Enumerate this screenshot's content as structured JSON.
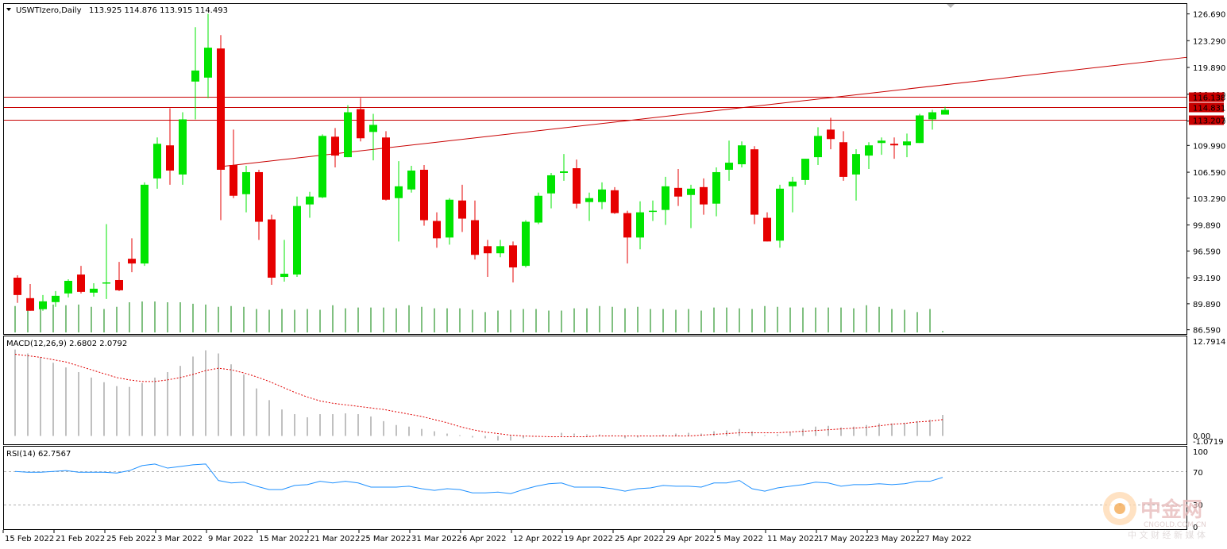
{
  "main": {
    "title": "USWTIzero,Daily",
    "ohlc": "113.925 114.876 113.915 114.493",
    "y_ticks": [
      "126.690",
      "123.290",
      "119.890",
      "116.490",
      "113.090",
      "109.990",
      "106.590",
      "103.290",
      "99.890",
      "96.590",
      "93.190",
      "89.890",
      "86.590"
    ],
    "h_lines": [
      {
        "value": 116.138,
        "label": "116.138"
      },
      {
        "value": 114.831,
        "label": "114.831"
      },
      {
        "value": 113.207,
        "label": "113.207"
      }
    ],
    "trendline": {
      "from": [
        16,
        107.3
      ],
      "to": [
        56,
        114.6
      ]
    },
    "colors": {
      "bull": "#00e400",
      "bear": "#e60000",
      "line": "#c80000",
      "volume": "#008000"
    }
  },
  "macd": {
    "title": "MACD(12,26,9) 2.6802 2.0792",
    "top_label": "12.7914",
    "bottom_label": "0.00",
    "bottom_label2": "-1.0719"
  },
  "rsi": {
    "title": "RSI(14) 62.7567",
    "levels": [
      "100",
      "70",
      "30",
      "0"
    ]
  },
  "x_labels": [
    {
      "i": 0,
      "label": "15 Feb 2022"
    },
    {
      "i": 4,
      "label": "21 Feb 2022"
    },
    {
      "i": 8,
      "label": "25 Feb 2022"
    },
    {
      "i": 12,
      "label": "3 Mar 2022"
    },
    {
      "i": 16,
      "label": "9 Mar 2022"
    },
    {
      "i": 20,
      "label": "15 Mar 2022"
    },
    {
      "i": 24,
      "label": "21 Mar 2022"
    },
    {
      "i": 28,
      "label": "25 Mar 2022"
    },
    {
      "i": 32,
      "label": "31 Mar 2022"
    },
    {
      "i": 36,
      "label": "6 Apr 2022"
    },
    {
      "i": 40,
      "label": "12 Apr 2022"
    },
    {
      "i": 44,
      "label": "19 Apr 2022"
    },
    {
      "i": 48,
      "label": "25 Apr 2022"
    },
    {
      "i": 52,
      "label": "29 Apr 2022"
    },
    {
      "i": 56,
      "label": "5 May 2022"
    },
    {
      "i": 60,
      "label": "11 May 2022"
    },
    {
      "i": 64,
      "label": "17 May 2022"
    },
    {
      "i": 68,
      "label": "23 May 2022"
    },
    {
      "i": 72,
      "label": "27 May 2022"
    }
  ],
  "watermark": {
    "name": "中金网",
    "url": "CNGOLD.COM.CN",
    "tagline": "中 文 财 经 新 媒 体"
  },
  "chart_data": {
    "type": "candlestick",
    "title": "USWTIzero,Daily",
    "ylim": [
      86.0,
      128.0
    ],
    "candles": [
      {
        "o": 93.2,
        "h": 93.5,
        "l": 90.0,
        "c": 91.0
      },
      {
        "o": 90.6,
        "h": 92.4,
        "l": 89.0,
        "c": 89.0
      },
      {
        "o": 89.2,
        "h": 91.0,
        "l": 89.0,
        "c": 90.2
      },
      {
        "o": 90.1,
        "h": 91.5,
        "l": 89.5,
        "c": 90.9
      },
      {
        "o": 91.2,
        "h": 93.0,
        "l": 90.7,
        "c": 92.8
      },
      {
        "o": 93.6,
        "h": 94.7,
        "l": 91.2,
        "c": 91.4
      },
      {
        "o": 91.3,
        "h": 92.5,
        "l": 90.8,
        "c": 91.8
      },
      {
        "o": 92.5,
        "h": 100.0,
        "l": 90.5,
        "c": 92.6
      },
      {
        "o": 92.9,
        "h": 95.2,
        "l": 91.5,
        "c": 91.6
      },
      {
        "o": 95.6,
        "h": 98.2,
        "l": 93.9,
        "c": 95.0
      },
      {
        "o": 95.0,
        "h": 105.3,
        "l": 94.7,
        "c": 105.0
      },
      {
        "o": 105.8,
        "h": 111.0,
        "l": 104.5,
        "c": 110.2
      },
      {
        "o": 110.0,
        "h": 114.7,
        "l": 105.0,
        "c": 106.8
      },
      {
        "o": 106.3,
        "h": 114.2,
        "l": 105.0,
        "c": 113.3
      },
      {
        "o": 118.1,
        "h": 125.0,
        "l": 113.3,
        "c": 119.5
      },
      {
        "o": 118.6,
        "h": 126.7,
        "l": 116.0,
        "c": 122.4
      },
      {
        "o": 122.3,
        "h": 124.0,
        "l": 100.5,
        "c": 106.9
      },
      {
        "o": 107.5,
        "h": 112.0,
        "l": 103.3,
        "c": 103.6
      },
      {
        "o": 103.8,
        "h": 107.4,
        "l": 101.5,
        "c": 106.6
      },
      {
        "o": 106.6,
        "h": 106.9,
        "l": 98.0,
        "c": 100.3
      },
      {
        "o": 100.6,
        "h": 101.2,
        "l": 92.3,
        "c": 93.2
      },
      {
        "o": 93.3,
        "h": 98.0,
        "l": 92.7,
        "c": 93.7
      },
      {
        "o": 93.6,
        "h": 103.5,
        "l": 93.3,
        "c": 102.3
      },
      {
        "o": 102.5,
        "h": 104.1,
        "l": 100.8,
        "c": 103.5
      },
      {
        "o": 103.4,
        "h": 111.4,
        "l": 103.3,
        "c": 111.2
      },
      {
        "o": 111.1,
        "h": 112.2,
        "l": 107.2,
        "c": 108.7
      },
      {
        "o": 108.5,
        "h": 115.1,
        "l": 108.5,
        "c": 114.2
      },
      {
        "o": 114.6,
        "h": 116.0,
        "l": 110.5,
        "c": 110.9
      },
      {
        "o": 111.7,
        "h": 114.0,
        "l": 108.1,
        "c": 112.6
      },
      {
        "o": 111.0,
        "h": 111.8,
        "l": 103.0,
        "c": 103.1
      },
      {
        "o": 103.3,
        "h": 108.0,
        "l": 97.8,
        "c": 104.8
      },
      {
        "o": 104.4,
        "h": 107.4,
        "l": 104.0,
        "c": 106.8
      },
      {
        "o": 106.9,
        "h": 107.5,
        "l": 99.8,
        "c": 100.5
      },
      {
        "o": 100.4,
        "h": 101.5,
        "l": 97.0,
        "c": 98.2
      },
      {
        "o": 98.3,
        "h": 103.3,
        "l": 97.4,
        "c": 103.1
      },
      {
        "o": 103.0,
        "h": 105.0,
        "l": 99.0,
        "c": 100.7
      },
      {
        "o": 100.5,
        "h": 103.0,
        "l": 95.5,
        "c": 96.1
      },
      {
        "o": 97.2,
        "h": 98.0,
        "l": 93.3,
        "c": 96.3
      },
      {
        "o": 96.3,
        "h": 98.0,
        "l": 95.8,
        "c": 97.2
      },
      {
        "o": 97.3,
        "h": 97.8,
        "l": 92.6,
        "c": 94.5
      },
      {
        "o": 94.7,
        "h": 100.5,
        "l": 94.5,
        "c": 100.3
      },
      {
        "o": 100.2,
        "h": 104.0,
        "l": 100.0,
        "c": 103.6
      },
      {
        "o": 103.9,
        "h": 106.5,
        "l": 102.0,
        "c": 106.2
      },
      {
        "o": 106.5,
        "h": 108.9,
        "l": 105.5,
        "c": 106.7
      },
      {
        "o": 107.1,
        "h": 108.2,
        "l": 102.0,
        "c": 102.6
      },
      {
        "o": 102.8,
        "h": 104.0,
        "l": 100.4,
        "c": 103.3
      },
      {
        "o": 102.8,
        "h": 105.3,
        "l": 101.9,
        "c": 104.4
      },
      {
        "o": 104.3,
        "h": 104.7,
        "l": 101.3,
        "c": 101.4
      },
      {
        "o": 101.4,
        "h": 101.7,
        "l": 95.0,
        "c": 98.3
      },
      {
        "o": 98.3,
        "h": 102.9,
        "l": 96.8,
        "c": 101.5
      },
      {
        "o": 101.6,
        "h": 103.0,
        "l": 100.4,
        "c": 101.7
      },
      {
        "o": 101.8,
        "h": 106.0,
        "l": 99.9,
        "c": 104.8
      },
      {
        "o": 104.6,
        "h": 107.0,
        "l": 102.3,
        "c": 103.5
      },
      {
        "o": 103.7,
        "h": 105.0,
        "l": 99.5,
        "c": 104.5
      },
      {
        "o": 104.7,
        "h": 105.8,
        "l": 101.2,
        "c": 102.5
      },
      {
        "o": 102.6,
        "h": 107.2,
        "l": 101.0,
        "c": 106.6
      },
      {
        "o": 106.9,
        "h": 110.6,
        "l": 105.5,
        "c": 107.8
      },
      {
        "o": 107.6,
        "h": 110.5,
        "l": 107.2,
        "c": 110.0
      },
      {
        "o": 109.5,
        "h": 109.9,
        "l": 100.0,
        "c": 101.2
      },
      {
        "o": 100.8,
        "h": 101.5,
        "l": 97.8,
        "c": 97.8
      },
      {
        "o": 97.9,
        "h": 105.0,
        "l": 97.0,
        "c": 104.5
      },
      {
        "o": 104.8,
        "h": 106.0,
        "l": 101.5,
        "c": 105.4
      },
      {
        "o": 105.6,
        "h": 108.3,
        "l": 105.0,
        "c": 108.3
      },
      {
        "o": 108.5,
        "h": 112.3,
        "l": 107.5,
        "c": 111.2
      },
      {
        "o": 112.0,
        "h": 113.5,
        "l": 109.5,
        "c": 110.8
      },
      {
        "o": 110.4,
        "h": 111.8,
        "l": 105.5,
        "c": 106.0
      },
      {
        "o": 106.3,
        "h": 109.5,
        "l": 103.0,
        "c": 108.9
      },
      {
        "o": 108.7,
        "h": 110.4,
        "l": 107.0,
        "c": 110.0
      },
      {
        "o": 110.3,
        "h": 111.0,
        "l": 108.8,
        "c": 110.6
      },
      {
        "o": 110.2,
        "h": 111.0,
        "l": 108.3,
        "c": 110.0
      },
      {
        "o": 110.0,
        "h": 111.5,
        "l": 108.5,
        "c": 110.5
      },
      {
        "o": 110.3,
        "h": 114.0,
        "l": 110.3,
        "c": 113.8
      },
      {
        "o": 113.3,
        "h": 114.5,
        "l": 112.0,
        "c": 114.2
      },
      {
        "o": 113.9,
        "h": 114.9,
        "l": 113.9,
        "c": 114.5
      }
    ],
    "volume": [
      35,
      33,
      34,
      37,
      36,
      37,
      34,
      31,
      34,
      40,
      41,
      41,
      40,
      40,
      38,
      37,
      34,
      35,
      34,
      31,
      30,
      31,
      30,
      31,
      30,
      36,
      32,
      33,
      33,
      33,
      32,
      36,
      34,
      32,
      32,
      32,
      30,
      27,
      29,
      30,
      31,
      31,
      29,
      29,
      32,
      32,
      35,
      34,
      32,
      34,
      31,
      31,
      30,
      31,
      29,
      33,
      33,
      32,
      31,
      35,
      34,
      33,
      33,
      33,
      33,
      33,
      32,
      36,
      34,
      31,
      30,
      27,
      31,
      2
    ],
    "volume_range": [
      0,
      50
    ],
    "macd_hist": [
      11.1,
      10.6,
      10.1,
      9.4,
      8.8,
      8.2,
      7.5,
      6.9,
      6.4,
      6.3,
      6.8,
      7.5,
      8.2,
      9.0,
      10.2,
      11.0,
      10.6,
      9.2,
      7.9,
      6.1,
      4.6,
      3.4,
      2.8,
      2.4,
      2.8,
      2.8,
      2.9,
      2.8,
      2.5,
      1.9,
      1.4,
      1.2,
      0.9,
      0.6,
      0.3,
      0.1,
      -0.2,
      -0.3,
      -0.6,
      -0.6,
      -0.3,
      -0.1,
      0.0,
      0.4,
      0.3,
      0.2,
      0.2,
      0.1,
      -0.3,
      -0.2,
      -0.1,
      0.2,
      0.3,
      0.4,
      0.3,
      0.6,
      0.7,
      0.9,
      0.6,
      0.1,
      0.2,
      0.5,
      0.9,
      1.2,
      1.3,
      1.1,
      1.2,
      1.4,
      1.6,
      1.6,
      1.7,
      1.9,
      2.1,
      2.7
    ],
    "macd_signal": [
      10.5,
      10.3,
      10.1,
      9.8,
      9.5,
      9.0,
      8.5,
      8.0,
      7.5,
      7.2,
      7.0,
      7.0,
      7.2,
      7.5,
      7.9,
      8.4,
      8.7,
      8.5,
      8.1,
      7.6,
      7.0,
      6.3,
      5.6,
      5.0,
      4.5,
      4.2,
      4.0,
      3.8,
      3.6,
      3.4,
      3.1,
      2.8,
      2.5,
      2.1,
      1.7,
      1.2,
      0.8,
      0.5,
      0.3,
      0.1,
      0.0,
      -0.05,
      -0.1,
      -0.1,
      -0.1,
      -0.1,
      0.0,
      0.0,
      0.0,
      0.0,
      0.0,
      0.0,
      0.0,
      0.0,
      0.1,
      0.2,
      0.3,
      0.4,
      0.4,
      0.4,
      0.4,
      0.5,
      0.6,
      0.7,
      0.8,
      0.9,
      1.0,
      1.1,
      1.3,
      1.5,
      1.6,
      1.8,
      1.9,
      2.1
    ],
    "macd_range": [
      -1.0719,
      12.7914
    ],
    "rsi": [
      70,
      69,
      69,
      70,
      71,
      69,
      69,
      69,
      68,
      71,
      77,
      79,
      74,
      76,
      78,
      79,
      59,
      56,
      57,
      52,
      48,
      48,
      53,
      54,
      58,
      56,
      58,
      56,
      51,
      51,
      51,
      52,
      49,
      47,
      49,
      48,
      44,
      44,
      45,
      43,
      48,
      52,
      55,
      56,
      51,
      51,
      51,
      49,
      46,
      49,
      50,
      53,
      52,
      52,
      51,
      56,
      56,
      59,
      49,
      46,
      50,
      52,
      54,
      57,
      56,
      52,
      54,
      54,
      55,
      54,
      55,
      58,
      58,
      62.76
    ],
    "rsi_range": [
      0,
      100
    ],
    "rsi_levels": [
      70,
      30
    ]
  }
}
